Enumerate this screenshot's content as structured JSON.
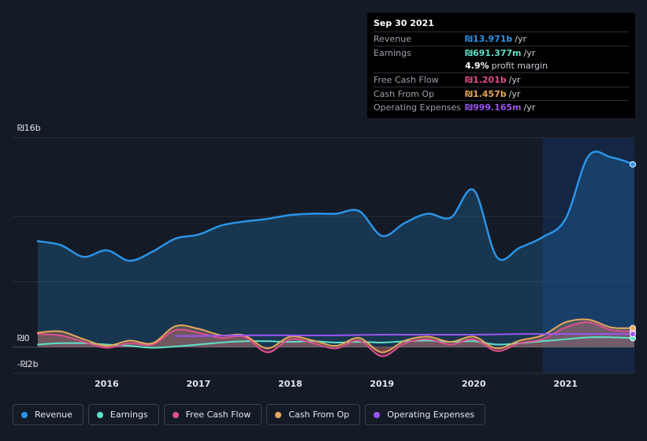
{
  "tooltip": {
    "date": "Sep 30 2021",
    "rows": [
      {
        "label": "Revenue",
        "value": "₪13.971b",
        "unit": "/yr",
        "color": "#2b94e8"
      },
      {
        "label": "Earnings",
        "value": "₪691.377m",
        "unit": "/yr",
        "color": "#5fe0c8"
      },
      {
        "label": "",
        "value": "4.9%",
        "unit": "profit margin",
        "color": "#ffffff"
      },
      {
        "label": "Free Cash Flow",
        "value": "₪1.201b",
        "unit": "/yr",
        "color": "#e0508c"
      },
      {
        "label": "Cash From Op",
        "value": "₪1.457b",
        "unit": "/yr",
        "color": "#e8a85a"
      },
      {
        "label": "Operating Expenses",
        "value": "₪999.165m",
        "unit": "/yr",
        "color": "#9a55f0"
      }
    ]
  },
  "legend": [
    {
      "label": "Revenue",
      "color": "#2b94e8"
    },
    {
      "label": "Earnings",
      "color": "#5fe0c8"
    },
    {
      "label": "Free Cash Flow",
      "color": "#e0508c"
    },
    {
      "label": "Cash From Op",
      "color": "#e8a85a"
    },
    {
      "label": "Operating Expenses",
      "color": "#9a55f0"
    }
  ],
  "chart_data": {
    "type": "line",
    "y_tick_labels": {
      "top": "₪16b",
      "zero": "₪0",
      "bottom": "-₪2b"
    },
    "ylim": [
      -2,
      16
    ],
    "xlim": [
      2015.25,
      2021.75
    ],
    "highlight_start": 2020.75,
    "x_tick_labels": [
      "2016",
      "2017",
      "2018",
      "2019",
      "2020",
      "2021"
    ],
    "x_ticks": [
      2016,
      2017,
      2018,
      2019,
      2020,
      2021
    ],
    "grid": true,
    "series": [
      {
        "name": "Revenue",
        "color": "#2b94e8",
        "fill": true,
        "points": [
          [
            2015.25,
            8.1
          ],
          [
            2015.5,
            7.8
          ],
          [
            2015.75,
            6.9
          ],
          [
            2016.0,
            7.4
          ],
          [
            2016.25,
            6.6
          ],
          [
            2016.5,
            7.3
          ],
          [
            2016.75,
            8.3
          ],
          [
            2017.0,
            8.6
          ],
          [
            2017.25,
            9.3
          ],
          [
            2017.5,
            9.6
          ],
          [
            2017.75,
            9.8
          ],
          [
            2018.0,
            10.1
          ],
          [
            2018.25,
            10.2
          ],
          [
            2018.5,
            10.2
          ],
          [
            2018.75,
            10.4
          ],
          [
            2019.0,
            8.5
          ],
          [
            2019.25,
            9.5
          ],
          [
            2019.5,
            10.2
          ],
          [
            2019.75,
            9.9
          ],
          [
            2020.0,
            12.0
          ],
          [
            2020.25,
            6.9
          ],
          [
            2020.5,
            7.6
          ],
          [
            2020.75,
            8.4
          ],
          [
            2021.0,
            9.8
          ],
          [
            2021.25,
            14.6
          ],
          [
            2021.5,
            14.5
          ],
          [
            2021.75,
            13.97
          ]
        ]
      },
      {
        "name": "Earnings",
        "color": "#5fe0c8",
        "fill": false,
        "points": [
          [
            2015.25,
            0.2
          ],
          [
            2015.5,
            0.3
          ],
          [
            2015.75,
            0.3
          ],
          [
            2016.0,
            0.2
          ],
          [
            2016.25,
            0.1
          ],
          [
            2016.5,
            -0.05
          ],
          [
            2016.75,
            0.05
          ],
          [
            2017.0,
            0.2
          ],
          [
            2017.25,
            0.35
          ],
          [
            2017.5,
            0.45
          ],
          [
            2017.75,
            0.45
          ],
          [
            2018.0,
            0.4
          ],
          [
            2018.25,
            0.45
          ],
          [
            2018.5,
            0.35
          ],
          [
            2018.75,
            0.4
          ],
          [
            2019.0,
            0.35
          ],
          [
            2019.25,
            0.45
          ],
          [
            2019.5,
            0.5
          ],
          [
            2019.75,
            0.4
          ],
          [
            2020.0,
            0.45
          ],
          [
            2020.25,
            0.2
          ],
          [
            2020.5,
            0.3
          ],
          [
            2020.75,
            0.45
          ],
          [
            2021.0,
            0.6
          ],
          [
            2021.25,
            0.75
          ],
          [
            2021.5,
            0.75
          ],
          [
            2021.75,
            0.69
          ]
        ]
      },
      {
        "name": "Free Cash Flow",
        "color": "#e0508c",
        "fill": true,
        "points": [
          [
            2015.25,
            1.0
          ],
          [
            2015.5,
            0.9
          ],
          [
            2015.75,
            0.4
          ],
          [
            2016.0,
            -0.05
          ],
          [
            2016.25,
            0.3
          ],
          [
            2016.5,
            0.2
          ],
          [
            2016.75,
            1.3
          ],
          [
            2017.0,
            1.1
          ],
          [
            2017.25,
            0.7
          ],
          [
            2017.5,
            0.8
          ],
          [
            2017.75,
            -0.4
          ],
          [
            2018.0,
            0.6
          ],
          [
            2018.25,
            0.3
          ],
          [
            2018.5,
            -0.1
          ],
          [
            2018.75,
            0.5
          ],
          [
            2019.0,
            -0.7
          ],
          [
            2019.25,
            0.3
          ],
          [
            2019.5,
            0.6
          ],
          [
            2019.75,
            0.2
          ],
          [
            2020.0,
            0.6
          ],
          [
            2020.25,
            -0.3
          ],
          [
            2020.5,
            0.3
          ],
          [
            2020.75,
            0.6
          ],
          [
            2021.0,
            1.5
          ],
          [
            2021.25,
            1.9
          ],
          [
            2021.5,
            1.3
          ],
          [
            2021.75,
            1.201
          ]
        ]
      },
      {
        "name": "Cash From Op",
        "color": "#e8a85a",
        "fill": true,
        "points": [
          [
            2015.25,
            1.1
          ],
          [
            2015.5,
            1.2
          ],
          [
            2015.75,
            0.6
          ],
          [
            2016.0,
            0.1
          ],
          [
            2016.25,
            0.5
          ],
          [
            2016.5,
            0.3
          ],
          [
            2016.75,
            1.6
          ],
          [
            2017.0,
            1.4
          ],
          [
            2017.25,
            0.9
          ],
          [
            2017.5,
            0.9
          ],
          [
            2017.75,
            -0.1
          ],
          [
            2018.0,
            0.8
          ],
          [
            2018.25,
            0.5
          ],
          [
            2018.5,
            0.1
          ],
          [
            2018.75,
            0.7
          ],
          [
            2019.0,
            -0.4
          ],
          [
            2019.25,
            0.5
          ],
          [
            2019.5,
            0.8
          ],
          [
            2019.75,
            0.4
          ],
          [
            2020.0,
            0.8
          ],
          [
            2020.25,
            -0.1
          ],
          [
            2020.5,
            0.5
          ],
          [
            2020.75,
            0.9
          ],
          [
            2021.0,
            1.9
          ],
          [
            2021.25,
            2.1
          ],
          [
            2021.5,
            1.5
          ],
          [
            2021.75,
            1.457
          ]
        ]
      },
      {
        "name": "Operating Expenses",
        "color": "#9a55f0",
        "fill": false,
        "points": [
          [
            2016.75,
            0.85
          ],
          [
            2017.0,
            0.85
          ],
          [
            2017.5,
            0.9
          ],
          [
            2018.0,
            0.9
          ],
          [
            2018.5,
            0.9
          ],
          [
            2019.0,
            0.95
          ],
          [
            2019.5,
            0.95
          ],
          [
            2020.0,
            0.95
          ],
          [
            2020.5,
            1.0
          ],
          [
            2021.0,
            1.0
          ],
          [
            2021.5,
            1.0
          ],
          [
            2021.75,
            0.999
          ]
        ]
      }
    ]
  }
}
